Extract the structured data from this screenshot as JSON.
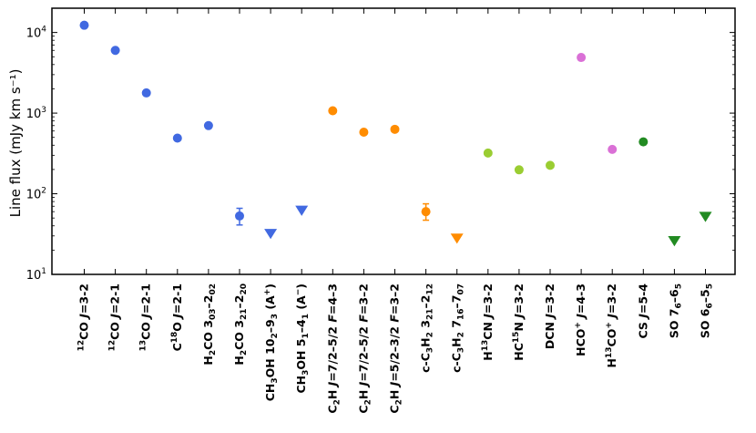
{
  "chart_data": {
    "type": "scatter",
    "ylabel": "Line flux (mJy km s⁻¹)",
    "yscale": "log",
    "ylim": [
      10,
      20000
    ],
    "yticks": [
      {
        "value": 10,
        "base": "10",
        "exp": "1"
      },
      {
        "value": 100,
        "base": "10",
        "exp": "2"
      },
      {
        "value": 1000,
        "base": "10",
        "exp": "3"
      },
      {
        "value": 10000,
        "base": "10",
        "exp": "4"
      }
    ],
    "grid": false,
    "colors": {
      "CO": "#4169e1",
      "C2H": "#ff8c00",
      "N-bearing": "#9acd32",
      "HCO+": "#da70d6",
      "S-bearing": "#228b22"
    },
    "categories": [
      "12CO J=3-2",
      "12CO J=2-1",
      "13CO J=2-1",
      "C18O J=2-1",
      "H2CO 3_03-2_02",
      "H2CO 3_21-2_20",
      "CH3OH 10_2-9_3 (A+)",
      "CH3OH 5_1-4_1 (A-)",
      "C2H J=7/2-5/2 F=4-3",
      "C2H J=7/2-5/2 F=3-2",
      "C2H J=5/2-3/2 F=3-2",
      "c-C3H2 3_21-2_12",
      "c-C3H2 7_16-7_07",
      "H13CN J=3-2",
      "HC15N J=3-2",
      "DCN J=3-2",
      "HCO+ J=4-3",
      "H13CO+ J=3-2",
      "CS J=5-4",
      "SO 7_6-6_5",
      "SO 6_6-5_5"
    ],
    "labels": [
      {
        "segs": [
          {
            "t": "12",
            "s": "sup"
          },
          {
            "t": "CO "
          },
          {
            "t": "J",
            "i": true
          },
          {
            "t": "=3-2"
          }
        ]
      },
      {
        "segs": [
          {
            "t": "12",
            "s": "sup"
          },
          {
            "t": "CO "
          },
          {
            "t": "J",
            "i": true
          },
          {
            "t": "=2-1"
          }
        ]
      },
      {
        "segs": [
          {
            "t": "13",
            "s": "sup"
          },
          {
            "t": "CO "
          },
          {
            "t": "J",
            "i": true
          },
          {
            "t": "=2-1"
          }
        ]
      },
      {
        "segs": [
          {
            "t": "C"
          },
          {
            "t": "18",
            "s": "sup"
          },
          {
            "t": "O "
          },
          {
            "t": "J",
            "i": true
          },
          {
            "t": "=2-1"
          }
        ]
      },
      {
        "segs": [
          {
            "t": "H"
          },
          {
            "t": "2",
            "s": "sub"
          },
          {
            "t": "CO 3"
          },
          {
            "t": "03",
            "s": "sub"
          },
          {
            "t": "–2"
          },
          {
            "t": "02",
            "s": "sub"
          }
        ]
      },
      {
        "segs": [
          {
            "t": "H"
          },
          {
            "t": "2",
            "s": "sub"
          },
          {
            "t": "CO 3"
          },
          {
            "t": "21",
            "s": "sub"
          },
          {
            "t": "–2"
          },
          {
            "t": "20",
            "s": "sub"
          }
        ]
      },
      {
        "segs": [
          {
            "t": "CH"
          },
          {
            "t": "3",
            "s": "sub"
          },
          {
            "t": "OH 10"
          },
          {
            "t": "2",
            "s": "sub"
          },
          {
            "t": "–9"
          },
          {
            "t": "3",
            "s": "sub"
          },
          {
            "t": " (A"
          },
          {
            "t": "+",
            "s": "sup"
          },
          {
            "t": ")"
          }
        ]
      },
      {
        "segs": [
          {
            "t": "CH"
          },
          {
            "t": "3",
            "s": "sub"
          },
          {
            "t": "OH 5"
          },
          {
            "t": "1",
            "s": "sub"
          },
          {
            "t": "–4"
          },
          {
            "t": "1",
            "s": "sub"
          },
          {
            "t": " (A"
          },
          {
            "t": "−",
            "s": "sup"
          },
          {
            "t": ")"
          }
        ]
      },
      {
        "segs": [
          {
            "t": "C"
          },
          {
            "t": "2",
            "s": "sub"
          },
          {
            "t": "H "
          },
          {
            "t": "J",
            "i": true
          },
          {
            "t": "=7/2–5/2 "
          },
          {
            "t": "F",
            "i": true
          },
          {
            "t": "=4–3"
          }
        ]
      },
      {
        "segs": [
          {
            "t": "C"
          },
          {
            "t": "2",
            "s": "sub"
          },
          {
            "t": "H "
          },
          {
            "t": "J",
            "i": true
          },
          {
            "t": "=7/2–5/2 "
          },
          {
            "t": "F",
            "i": true
          },
          {
            "t": "=3–2"
          }
        ]
      },
      {
        "segs": [
          {
            "t": "C"
          },
          {
            "t": "2",
            "s": "sub"
          },
          {
            "t": "H "
          },
          {
            "t": "J",
            "i": true
          },
          {
            "t": "=5/2–3/2 "
          },
          {
            "t": "F",
            "i": true
          },
          {
            "t": "=3–2"
          }
        ]
      },
      {
        "segs": [
          {
            "t": "c-C"
          },
          {
            "t": "3",
            "s": "sub"
          },
          {
            "t": "H"
          },
          {
            "t": "2",
            "s": "sub"
          },
          {
            "t": " 3"
          },
          {
            "t": "21",
            "s": "sub"
          },
          {
            "t": "–2"
          },
          {
            "t": "12",
            "s": "sub"
          }
        ]
      },
      {
        "segs": [
          {
            "t": "c-C"
          },
          {
            "t": "3",
            "s": "sub"
          },
          {
            "t": "H"
          },
          {
            "t": "2",
            "s": "sub"
          },
          {
            "t": " 7"
          },
          {
            "t": "16",
            "s": "sub"
          },
          {
            "t": "–7"
          },
          {
            "t": "07",
            "s": "sub"
          }
        ]
      },
      {
        "segs": [
          {
            "t": "H"
          },
          {
            "t": "13",
            "s": "sup"
          },
          {
            "t": "CN "
          },
          {
            "t": "J",
            "i": true
          },
          {
            "t": "=3-2"
          }
        ]
      },
      {
        "segs": [
          {
            "t": "HC"
          },
          {
            "t": "15",
            "s": "sup"
          },
          {
            "t": "N "
          },
          {
            "t": "J",
            "i": true
          },
          {
            "t": "=3-2"
          }
        ]
      },
      {
        "segs": [
          {
            "t": "DCN "
          },
          {
            "t": "J",
            "i": true
          },
          {
            "t": "=3-2"
          }
        ]
      },
      {
        "segs": [
          {
            "t": "HCO"
          },
          {
            "t": "+",
            "s": "sup"
          },
          {
            "t": " "
          },
          {
            "t": "J",
            "i": true
          },
          {
            "t": "=4-3"
          }
        ]
      },
      {
        "segs": [
          {
            "t": "H"
          },
          {
            "t": "13",
            "s": "sup"
          },
          {
            "t": "CO"
          },
          {
            "t": "+",
            "s": "sup"
          },
          {
            "t": " "
          },
          {
            "t": "J",
            "i": true
          },
          {
            "t": "=3-2"
          }
        ]
      },
      {
        "segs": [
          {
            "t": "CS "
          },
          {
            "t": "J",
            "i": true
          },
          {
            "t": "=5-4"
          }
        ]
      },
      {
        "segs": [
          {
            "t": "SO 7"
          },
          {
            "t": "6",
            "s": "sub"
          },
          {
            "t": "–6"
          },
          {
            "t": "5",
            "s": "sub"
          }
        ]
      },
      {
        "segs": [
          {
            "t": "SO 6"
          },
          {
            "t": "6",
            "s": "sub"
          },
          {
            "t": "–5"
          },
          {
            "t": "5",
            "s": "sub"
          }
        ]
      }
    ],
    "points": [
      {
        "y": 12300,
        "marker": "circle",
        "color": "#4169e1"
      },
      {
        "y": 6000,
        "marker": "circle",
        "color": "#4169e1"
      },
      {
        "y": 1780,
        "marker": "circle",
        "color": "#4169e1"
      },
      {
        "y": 490,
        "marker": "circle",
        "color": "#4169e1"
      },
      {
        "y": 700,
        "marker": "circle",
        "color": "#4169e1"
      },
      {
        "y": 53,
        "err": [
          41,
          66
        ],
        "marker": "circle",
        "color": "#4169e1"
      },
      {
        "y": 32,
        "marker": "triangle-down",
        "color": "#4169e1"
      },
      {
        "y": 62,
        "marker": "triangle-down",
        "color": "#4169e1"
      },
      {
        "y": 1070,
        "marker": "circle",
        "color": "#ff8c00"
      },
      {
        "y": 580,
        "marker": "circle",
        "color": "#ff8c00"
      },
      {
        "y": 630,
        "marker": "circle",
        "color": "#ff8c00"
      },
      {
        "y": 60,
        "err": [
          47,
          75
        ],
        "marker": "circle",
        "color": "#ff8c00"
      },
      {
        "y": 28,
        "marker": "triangle-down",
        "color": "#ff8c00"
      },
      {
        "y": 320,
        "marker": "circle",
        "color": "#9acd32"
      },
      {
        "y": 198,
        "marker": "circle",
        "color": "#9acd32"
      },
      {
        "y": 225,
        "marker": "circle",
        "color": "#9acd32"
      },
      {
        "y": 4900,
        "marker": "circle",
        "color": "#da70d6"
      },
      {
        "y": 355,
        "marker": "circle",
        "color": "#da70d6"
      },
      {
        "y": 440,
        "marker": "circle",
        "color": "#228b22"
      },
      {
        "y": 26,
        "marker": "triangle-down",
        "color": "#228b22"
      },
      {
        "y": 52,
        "marker": "triangle-down",
        "color": "#228b22"
      }
    ]
  }
}
